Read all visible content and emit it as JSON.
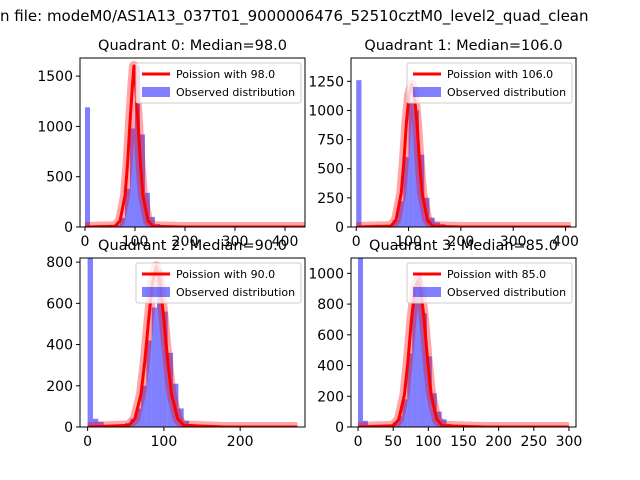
{
  "suptitle": "n file: modeM0/AS1A13_037T01_9000006476_52510cztM0_level2_quad_clean",
  "colors": {
    "bar": "#0000ff",
    "bar_opacity": 0.5,
    "fit_line": "#ff0000",
    "axis": "#000000",
    "background": "#ffffff"
  },
  "chart_data": [
    {
      "type": "bar",
      "title": "Quadrant 0: Median=98.0",
      "xlabel": "",
      "ylabel": "",
      "xlim": [
        -10,
        440
      ],
      "ylim": [
        0,
        1680
      ],
      "xticks": [
        0,
        100,
        200,
        300,
        400
      ],
      "yticks": [
        0,
        500,
        1000,
        1500
      ],
      "bin_width": 10,
      "legend": {
        "position": "top-right",
        "entries": [
          "Poission with 98.0",
          "Observed distribution"
        ]
      },
      "bars": [
        {
          "x": 0,
          "y": 1190
        },
        {
          "x": 30,
          "y": 3
        },
        {
          "x": 40,
          "y": 4
        },
        {
          "x": 50,
          "y": 6
        },
        {
          "x": 60,
          "y": 25
        },
        {
          "x": 70,
          "y": 90
        },
        {
          "x": 80,
          "y": 380
        },
        {
          "x": 90,
          "y": 980
        },
        {
          "x": 100,
          "y": 1600
        },
        {
          "x": 110,
          "y": 920
        },
        {
          "x": 120,
          "y": 340
        },
        {
          "x": 130,
          "y": 100
        },
        {
          "x": 140,
          "y": 30
        },
        {
          "x": 150,
          "y": 10
        },
        {
          "x": 160,
          "y": 4
        },
        {
          "x": 170,
          "y": 2
        }
      ],
      "fit": {
        "name": "Poission with 98.0",
        "mean": 98.0,
        "x": [
          0,
          60,
          70,
          80,
          85,
          90,
          95,
          98,
          101,
          106,
          111,
          116,
          126,
          136,
          200,
          300,
          440
        ],
        "y": [
          0,
          8,
          60,
          310,
          620,
          1040,
          1420,
          1600,
          1420,
          1040,
          620,
          310,
          60,
          8,
          0,
          0,
          0
        ]
      }
    },
    {
      "type": "bar",
      "title": "Quadrant 1: Median=106.0",
      "xlabel": "",
      "ylabel": "",
      "xlim": [
        -10,
        420
      ],
      "ylim": [
        0,
        1450
      ],
      "xticks": [
        0,
        100,
        200,
        300,
        400
      ],
      "yticks": [
        0,
        250,
        500,
        750,
        1000,
        1250
      ],
      "bin_width": 10,
      "legend": {
        "position": "top-right",
        "entries": [
          "Poission with 106.0",
          "Observed distribution"
        ]
      },
      "bars": [
        {
          "x": 0,
          "y": 1260
        },
        {
          "x": 40,
          "y": 3
        },
        {
          "x": 50,
          "y": 5
        },
        {
          "x": 60,
          "y": 15
        },
        {
          "x": 70,
          "y": 60
        },
        {
          "x": 80,
          "y": 220
        },
        {
          "x": 90,
          "y": 600
        },
        {
          "x": 100,
          "y": 1070
        },
        {
          "x": 110,
          "y": 1000
        },
        {
          "x": 120,
          "y": 620
        },
        {
          "x": 130,
          "y": 250
        },
        {
          "x": 140,
          "y": 80
        },
        {
          "x": 150,
          "y": 40
        },
        {
          "x": 160,
          "y": 25
        },
        {
          "x": 170,
          "y": 12
        },
        {
          "x": 180,
          "y": 5
        }
      ],
      "fit": {
        "name": "Poission with 106.0",
        "mean": 106.0,
        "x": [
          0,
          66,
          76,
          86,
          91,
          96,
          101,
          106,
          111,
          116,
          121,
          126,
          136,
          146,
          200,
          300,
          410
        ],
        "y": [
          0,
          8,
          60,
          290,
          560,
          900,
          1130,
          1220,
          1130,
          900,
          560,
          290,
          60,
          8,
          0,
          0,
          0
        ]
      }
    },
    {
      "type": "bar",
      "title": "Quadrant 2: Median=90.0",
      "xlabel": "",
      "ylabel": "",
      "xlim": [
        -10,
        285
      ],
      "ylim": [
        0,
        820
      ],
      "xticks": [
        0,
        100,
        200
      ],
      "yticks": [
        0,
        200,
        400,
        600,
        800
      ],
      "bin_width": 7,
      "legend": {
        "position": "top-right",
        "entries": [
          "Poission with 90.0",
          "Observed distribution"
        ]
      },
      "bars": [
        {
          "x": 0,
          "y": 820
        },
        {
          "x": 7,
          "y": 40
        },
        {
          "x": 14,
          "y": 25
        },
        {
          "x": 21,
          "y": 8
        },
        {
          "x": 35,
          "y": 5
        },
        {
          "x": 42,
          "y": 10
        },
        {
          "x": 49,
          "y": 20
        },
        {
          "x": 56,
          "y": 40
        },
        {
          "x": 63,
          "y": 90
        },
        {
          "x": 70,
          "y": 200
        },
        {
          "x": 77,
          "y": 420
        },
        {
          "x": 84,
          "y": 580
        },
        {
          "x": 91,
          "y": 760
        },
        {
          "x": 98,
          "y": 560
        },
        {
          "x": 105,
          "y": 360
        },
        {
          "x": 112,
          "y": 210
        },
        {
          "x": 119,
          "y": 90
        },
        {
          "x": 126,
          "y": 30
        },
        {
          "x": 133,
          "y": 15
        },
        {
          "x": 140,
          "y": 8
        },
        {
          "x": 147,
          "y": 4
        }
      ],
      "fit": {
        "name": "Poission with 90.0",
        "mean": 90.0,
        "x": [
          0,
          54,
          62,
          70,
          75,
          80,
          85,
          90,
          95,
          100,
          105,
          110,
          118,
          126,
          180,
          275
        ],
        "y": [
          0,
          8,
          40,
          160,
          320,
          520,
          700,
          780,
          700,
          520,
          320,
          160,
          40,
          8,
          0,
          0
        ]
      }
    },
    {
      "type": "bar",
      "title": "Quadrant 3: Median=85.0",
      "xlabel": "",
      "ylabel": "",
      "xlim": [
        -10,
        310
      ],
      "ylim": [
        0,
        1100
      ],
      "xticks": [
        0,
        50,
        100,
        150,
        200,
        250,
        300
      ],
      "yticks": [
        0,
        200,
        400,
        600,
        800,
        1000
      ],
      "bin_width": 7,
      "legend": {
        "position": "top-right",
        "entries": [
          "Poission with 85.0",
          "Observed distribution"
        ]
      },
      "bars": [
        {
          "x": 0,
          "y": 1100
        },
        {
          "x": 7,
          "y": 40
        },
        {
          "x": 14,
          "y": 10
        },
        {
          "x": 28,
          "y": 4
        },
        {
          "x": 35,
          "y": 8
        },
        {
          "x": 42,
          "y": 15
        },
        {
          "x": 49,
          "y": 30
        },
        {
          "x": 56,
          "y": 70
        },
        {
          "x": 63,
          "y": 180
        },
        {
          "x": 70,
          "y": 480
        },
        {
          "x": 77,
          "y": 850
        },
        {
          "x": 84,
          "y": 990
        },
        {
          "x": 91,
          "y": 740
        },
        {
          "x": 98,
          "y": 460
        },
        {
          "x": 105,
          "y": 220
        },
        {
          "x": 112,
          "y": 100
        },
        {
          "x": 119,
          "y": 50
        },
        {
          "x": 126,
          "y": 20
        },
        {
          "x": 133,
          "y": 8
        },
        {
          "x": 140,
          "y": 4
        }
      ],
      "fit": {
        "name": "Poission with 85.0",
        "mean": 85.0,
        "x": [
          0,
          50,
          58,
          66,
          71,
          76,
          81,
          85,
          89,
          94,
          99,
          104,
          112,
          120,
          180,
          300
        ],
        "y": [
          0,
          8,
          50,
          210,
          430,
          700,
          900,
          950,
          900,
          700,
          430,
          210,
          50,
          8,
          0,
          0
        ]
      }
    }
  ]
}
